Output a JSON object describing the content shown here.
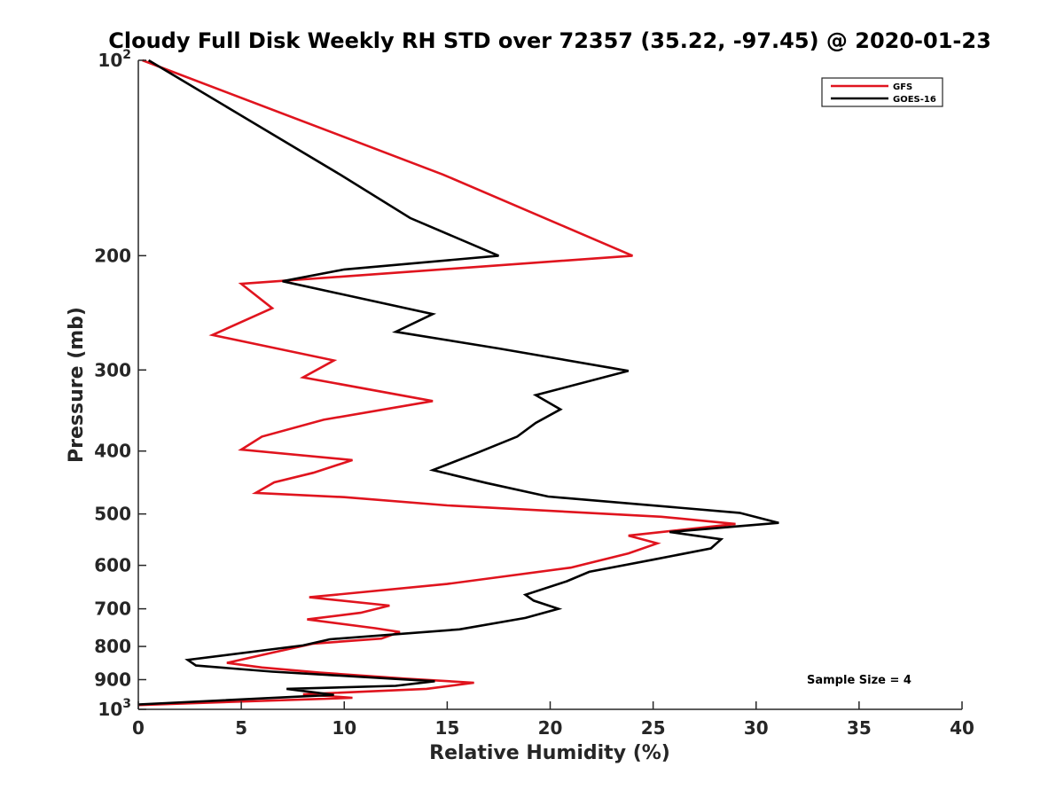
{
  "chart_data": {
    "type": "line",
    "title": "Cloudy Full Disk Weekly RH STD over 72357 (35.22, -97.45) @ 2020-01-23",
    "xlabel": "Relative Humidity (%)",
    "ylabel": "Pressure (mb)",
    "xlim": [
      0,
      40
    ],
    "ylim": [
      100,
      1000
    ],
    "y_scale": "log",
    "y_reversed": true,
    "grid": false,
    "legend_position": "top-right",
    "x_ticks": [
      "0",
      "5",
      "10",
      "15",
      "20",
      "25",
      "30",
      "35",
      "40"
    ],
    "y_ticks": [
      {
        "value": 100,
        "base": "10",
        "exp": "2"
      },
      {
        "value": 200,
        "label": "200"
      },
      {
        "value": 300,
        "label": "300"
      },
      {
        "value": 400,
        "label": "400"
      },
      {
        "value": 500,
        "label": "500"
      },
      {
        "value": 600,
        "label": "600"
      },
      {
        "value": 700,
        "label": "700"
      },
      {
        "value": 800,
        "label": "800"
      },
      {
        "value": 900,
        "label": "900"
      },
      {
        "value": 1000,
        "base": "10",
        "exp": "3"
      }
    ],
    "annotation": "Sample Size = 4",
    "series": [
      {
        "name": "GFS",
        "color": "#e0141e",
        "points": [
          [
            0.2,
            100
          ],
          [
            14.8,
            150
          ],
          [
            24.0,
            200
          ],
          [
            5.0,
            221
          ],
          [
            6.5,
            241
          ],
          [
            3.6,
            265
          ],
          [
            9.5,
            290
          ],
          [
            8.0,
            308
          ],
          [
            14.3,
            335
          ],
          [
            9.0,
            358
          ],
          [
            6.0,
            380
          ],
          [
            5.0,
            398
          ],
          [
            10.4,
            413
          ],
          [
            8.5,
            432
          ],
          [
            6.6,
            447
          ],
          [
            5.7,
            464
          ],
          [
            10.0,
            471
          ],
          [
            15.0,
            485
          ],
          [
            25.4,
            505
          ],
          [
            29.0,
            518
          ],
          [
            23.8,
            540
          ],
          [
            25.2,
            555
          ],
          [
            23.8,
            575
          ],
          [
            21.0,
            605
          ],
          [
            15.0,
            641
          ],
          [
            8.3,
            672
          ],
          [
            12.2,
            692
          ],
          [
            10.8,
            710
          ],
          [
            8.2,
            727
          ],
          [
            11.5,
            750
          ],
          [
            12.7,
            760
          ],
          [
            11.8,
            778
          ],
          [
            8.5,
            792
          ],
          [
            6.5,
            818
          ],
          [
            4.3,
            848
          ],
          [
            6.0,
            862
          ],
          [
            8.8,
            878
          ],
          [
            13.0,
            897
          ],
          [
            16.3,
            910
          ],
          [
            14.0,
            930
          ],
          [
            8.0,
            948
          ],
          [
            10.4,
            960
          ],
          [
            0.0,
            985
          ]
        ]
      },
      {
        "name": "GOES-16",
        "color": "#000000",
        "points": [
          [
            0.5,
            100
          ],
          [
            9.8,
            150
          ],
          [
            13.2,
            175
          ],
          [
            17.5,
            200
          ],
          [
            10.0,
            210
          ],
          [
            7.0,
            219
          ],
          [
            14.3,
            246
          ],
          [
            12.5,
            262
          ],
          [
            17.5,
            278
          ],
          [
            23.8,
            301
          ],
          [
            19.3,
            328
          ],
          [
            20.5,
            345
          ],
          [
            19.3,
            362
          ],
          [
            18.4,
            380
          ],
          [
            16.5,
            402
          ],
          [
            14.3,
            428
          ],
          [
            16.9,
            448
          ],
          [
            19.9,
            470
          ],
          [
            29.2,
            498
          ],
          [
            31.1,
            516
          ],
          [
            25.8,
            533
          ],
          [
            28.3,
            547
          ],
          [
            27.8,
            565
          ],
          [
            25.0,
            588
          ],
          [
            21.9,
            614
          ],
          [
            20.8,
            635
          ],
          [
            18.8,
            666
          ],
          [
            19.2,
            680
          ],
          [
            20.4,
            700
          ],
          [
            18.8,
            723
          ],
          [
            15.6,
            753
          ],
          [
            9.3,
            780
          ],
          [
            8.0,
            797
          ],
          [
            2.4,
            839
          ],
          [
            2.8,
            856
          ],
          [
            6.5,
            875
          ],
          [
            14.4,
            905
          ],
          [
            12.5,
            920
          ],
          [
            7.2,
            930
          ],
          [
            9.5,
            950
          ],
          [
            0.0,
            983
          ]
        ]
      }
    ]
  }
}
